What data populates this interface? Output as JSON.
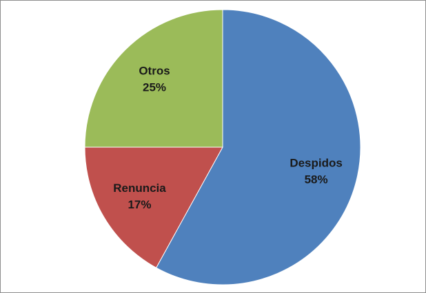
{
  "chart_data": {
    "type": "pie",
    "categories": [
      "Despidos",
      "Renuncia",
      "Otros"
    ],
    "values": [
      58,
      17,
      25
    ],
    "value_labels": [
      "58%",
      "17%",
      "25%"
    ],
    "colors": [
      "#4f81bd",
      "#c0504d",
      "#9bbb59"
    ]
  }
}
